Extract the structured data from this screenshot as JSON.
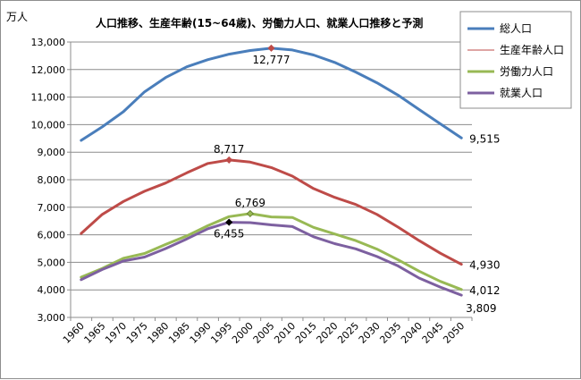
{
  "chart_data": {
    "type": "line",
    "title": "人口推移、生産年齢(15~64歳)、労働力人口、就業人口推移と予測",
    "ylabel": "万人",
    "xlabel": "",
    "ylim": [
      3000,
      13000
    ],
    "ytick_step": 1000,
    "grid": true,
    "legend_position": "top-right",
    "categories": [
      "1960",
      "1965",
      "1970",
      "1975",
      "1980",
      "1985",
      "1990",
      "1995",
      "2000",
      "2005",
      "2010",
      "2015",
      "2020",
      "2025",
      "2030",
      "2035",
      "2040",
      "2045",
      "2050"
    ],
    "series": [
      {
        "name": "総人口",
        "color": "#4a7ebb",
        "values": [
          9430,
          9920,
          10470,
          11190,
          11710,
          12100,
          12360,
          12560,
          12690,
          12777,
          12710,
          12530,
          12260,
          11910,
          11520,
          11070,
          10550,
          10030,
          9515
        ],
        "highlight_index": 9,
        "highlight_color": "#be4b48",
        "labels": [
          {
            "index": 9,
            "text": "12,777",
            "pos": "below"
          },
          {
            "index": 18,
            "text": "9,515",
            "pos": "right"
          }
        ]
      },
      {
        "name": "生産年齢人口",
        "color": "#be4b48",
        "values": [
          6050,
          6740,
          7210,
          7580,
          7880,
          8250,
          8590,
          8717,
          8640,
          8440,
          8130,
          7680,
          7360,
          7100,
          6740,
          6280,
          5790,
          5330,
          4930
        ],
        "highlight_index": 7,
        "highlight_color": "#be4b48",
        "labels": [
          {
            "index": 7,
            "text": "8,717",
            "pos": "above"
          },
          {
            "index": 18,
            "text": "4,930",
            "pos": "right"
          }
        ]
      },
      {
        "name": "労働力人口",
        "color": "#98b954",
        "values": [
          4460,
          4780,
          5150,
          5320,
          5650,
          5960,
          6330,
          6660,
          6769,
          6650,
          6630,
          6270,
          6030,
          5790,
          5480,
          5090,
          4680,
          4310,
          4012
        ],
        "highlight_index": 8,
        "highlight_color": "#98b954",
        "labels": [
          {
            "index": 8,
            "text": "6,769",
            "pos": "above"
          },
          {
            "index": 18,
            "text": "4,012",
            "pos": "right"
          }
        ]
      },
      {
        "name": "就業人口",
        "color": "#7d60a0",
        "values": [
          4370,
          4740,
          5050,
          5190,
          5500,
          5850,
          6220,
          6455,
          6440,
          6360,
          6300,
          5930,
          5680,
          5490,
          5210,
          4870,
          4430,
          4100,
          3809
        ],
        "highlight_index": 7,
        "highlight_color": "#000000",
        "labels": [
          {
            "index": 7,
            "text": "6,455",
            "pos": "below"
          },
          {
            "index": 18,
            "text": "3,809",
            "pos": "below-right"
          }
        ]
      }
    ]
  },
  "legend": {
    "items": [
      {
        "label": "総人口",
        "color": "#4a7ebb",
        "thick": true
      },
      {
        "label": "生産年齢人口",
        "color": "#be4b48",
        "thick": false
      },
      {
        "label": "労働力人口",
        "color": "#98b954",
        "thick": true
      },
      {
        "label": "就業人口",
        "color": "#7d60a0",
        "thick": true
      }
    ]
  }
}
